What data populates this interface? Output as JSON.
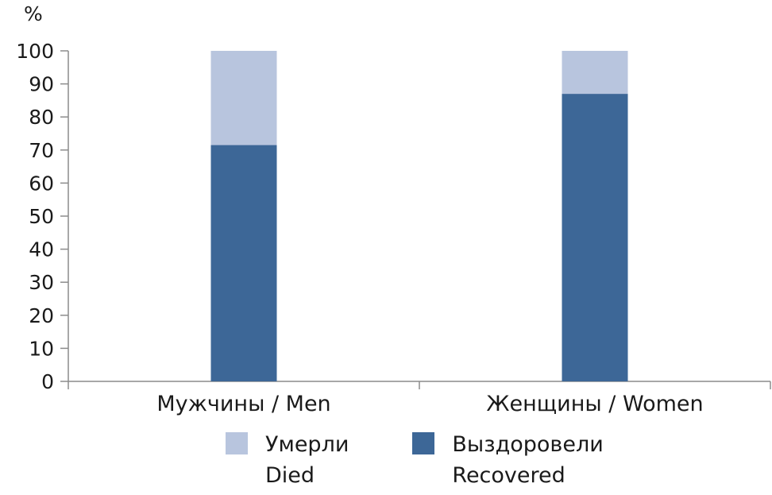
{
  "chart_data": {
    "type": "bar",
    "stacked": true,
    "y_unit_label": "%",
    "categories": [
      "Мужчины / Men",
      "Женщины / Women"
    ],
    "series": [
      {
        "name_ru": "Выздоровели",
        "name_en": "Recovered",
        "color": "#3d6797",
        "values": [
          71.5,
          87
        ]
      },
      {
        "name_ru": "Умерли",
        "name_en": "Died",
        "color": "#b8c5de",
        "values": [
          28.5,
          13
        ]
      }
    ],
    "ylim": [
      0,
      100
    ],
    "yticks": [
      0,
      10,
      20,
      30,
      40,
      50,
      60,
      70,
      80,
      90,
      100
    ],
    "grid": false,
    "legend_position": "bottom"
  }
}
